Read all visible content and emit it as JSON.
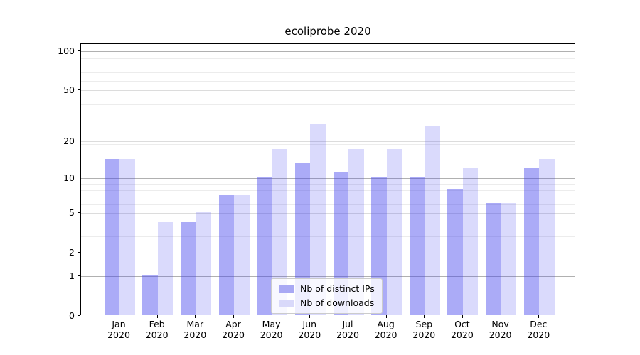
{
  "chart_data": {
    "type": "bar",
    "title": "ecoliprobe 2020",
    "categories": [
      "Jan",
      "Feb",
      "Mar",
      "Apr",
      "May",
      "Jun",
      "Jul",
      "Aug",
      "Sep",
      "Oct",
      "Nov",
      "Dec"
    ],
    "category_year": "2020",
    "series": [
      {
        "name": "Nb of distinct IPs",
        "color": "rgba(68,68,238,0.45)",
        "legend_color": "#a9a9f4",
        "values": [
          14,
          1,
          4,
          7,
          10,
          13,
          11,
          10,
          10,
          8,
          6,
          12
        ]
      },
      {
        "name": "Nb of downloads",
        "color": "rgba(68,68,238,0.2)",
        "legend_color": "#d9d9fa",
        "values": [
          14,
          4,
          5,
          7,
          17,
          27,
          17,
          17,
          26,
          12,
          6,
          14
        ]
      }
    ],
    "y_axis": {
      "scale": "log1p",
      "ticks": [
        0,
        1,
        2,
        5,
        10,
        20,
        50,
        100
      ],
      "emphasized_ticks": [
        1,
        10,
        100
      ],
      "minor_ticks_plus1": [
        4,
        5,
        7,
        8,
        9,
        10,
        20,
        30,
        40,
        60,
        70,
        80,
        90
      ],
      "ylim": [
        0,
        114
      ]
    },
    "legend": {
      "position": "lower center",
      "entries": [
        "Nb of distinct IPs",
        "Nb of downloads"
      ]
    },
    "grid": {
      "major_color": "#b0b0b0",
      "mid_color": "#dcdcdc",
      "minor_color": "#ececec"
    }
  }
}
